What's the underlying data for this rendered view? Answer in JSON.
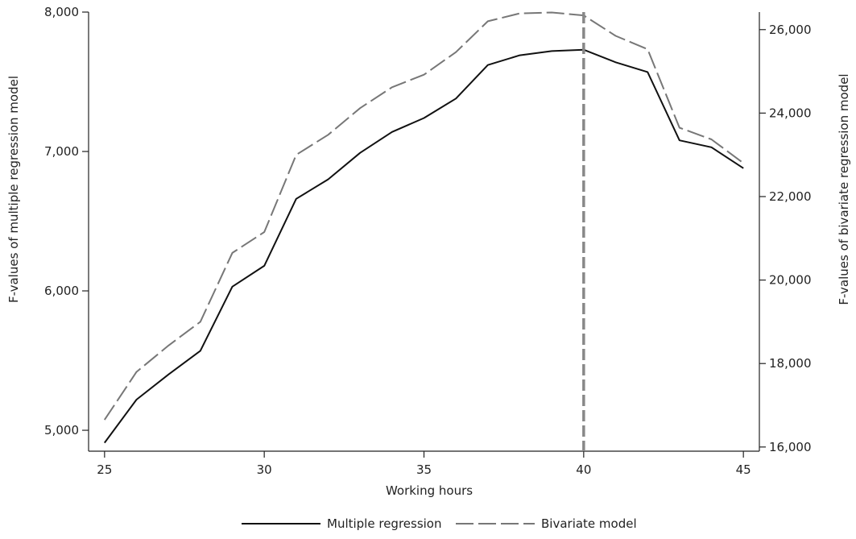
{
  "chart_data": {
    "type": "line",
    "title": "",
    "xlabel": "Working hours",
    "ylabel_left": "F-values of multiple regression model",
    "ylabel_right": "F-values of bivariate regression model",
    "xlim": [
      24.5,
      45.5
    ],
    "ylim_left": [
      4850,
      8000
    ],
    "ylim_right": [
      15900,
      26420
    ],
    "x_ticks": [
      25,
      30,
      35,
      40,
      45
    ],
    "x_tick_labels": [
      "25",
      "30",
      "35",
      "40",
      "45"
    ],
    "y_left_ticks": [
      5000,
      6000,
      7000,
      8000
    ],
    "y_left_tick_labels": [
      "5,000",
      "6,000",
      "7,000",
      "8,000"
    ],
    "y_right_ticks": [
      16000,
      18000,
      20000,
      22000,
      24000,
      26000
    ],
    "y_right_tick_labels": [
      "16,000",
      "18,000",
      "20,000",
      "22,000",
      "24,000",
      "26,000"
    ],
    "grid": false,
    "reference_line": {
      "x": 40,
      "style": "dashed",
      "color": "#888888"
    },
    "legend_position": "bottom",
    "x": [
      25,
      26,
      27,
      28,
      29,
      30,
      31,
      32,
      33,
      34,
      35,
      36,
      37,
      38,
      39,
      40,
      41,
      42,
      43,
      44,
      45
    ],
    "series": [
      {
        "name": "Multiple regression",
        "axis": "left",
        "color": "#111111",
        "style": "solid",
        "values": [
          4910,
          5220,
          5400,
          5570,
          6030,
          6180,
          6660,
          6800,
          6990,
          7140,
          7240,
          7380,
          7620,
          7690,
          7720,
          7730,
          7640,
          7570,
          7080,
          7030,
          6880
        ]
      },
      {
        "name": "Bivariate model",
        "axis": "right",
        "color": "#777777",
        "style": "longdash",
        "values": [
          16650,
          17800,
          18430,
          19000,
          20650,
          21150,
          23000,
          23480,
          24120,
          24620,
          24920,
          25460,
          26200,
          26390,
          26410,
          26340,
          25850,
          25530,
          23650,
          23370,
          22800
        ]
      }
    ]
  }
}
